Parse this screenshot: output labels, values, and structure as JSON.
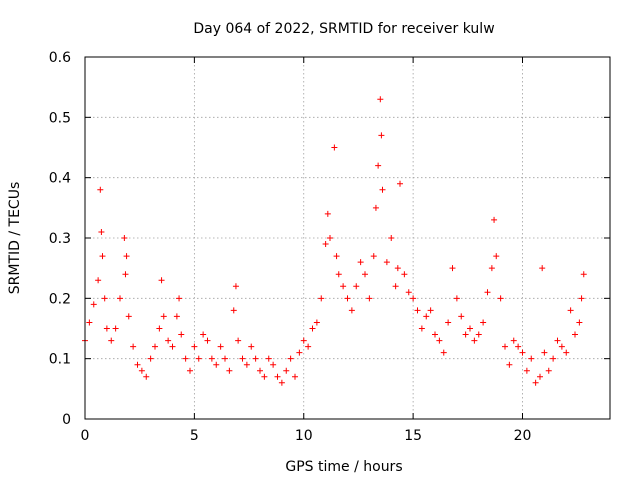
{
  "chart_data": {
    "type": "scatter",
    "title": "Day 064 of 2022, SRMTID for receiver kulw",
    "xlabel": "GPS time / hours",
    "ylabel": "SRMTID / TECUs",
    "xlim": [
      0,
      24
    ],
    "ylim": [
      0,
      0.6
    ],
    "xticks": [
      0,
      5,
      10,
      15,
      20
    ],
    "xtick_labels": [
      "0",
      "5",
      "10",
      "15",
      "20"
    ],
    "yticks": [
      0,
      0.1,
      0.2,
      0.3,
      0.4,
      0.5,
      0.6
    ],
    "ytick_labels": [
      "0",
      "0.1",
      "0.2",
      "0.3",
      "0.4",
      "0.5",
      "0.6"
    ],
    "grid": true,
    "marker": "+",
    "series_color": "#ff0000",
    "series": [
      {
        "name": "SRMTID",
        "x": [
          0.0,
          0.2,
          0.4,
          0.6,
          0.7,
          0.75,
          0.8,
          0.9,
          1.0,
          1.2,
          1.4,
          1.6,
          1.8,
          1.85,
          1.9,
          2.0,
          2.2,
          2.4,
          2.6,
          2.8,
          3.0,
          3.2,
          3.4,
          3.5,
          3.6,
          3.8,
          4.0,
          4.2,
          4.3,
          4.4,
          4.6,
          4.8,
          5.0,
          5.2,
          5.4,
          5.6,
          5.8,
          6.0,
          6.2,
          6.4,
          6.6,
          6.8,
          6.9,
          7.0,
          7.2,
          7.4,
          7.6,
          7.8,
          8.0,
          8.2,
          8.4,
          8.6,
          8.8,
          9.0,
          9.2,
          9.4,
          9.6,
          9.8,
          10.0,
          10.2,
          10.4,
          10.6,
          10.8,
          11.0,
          11.1,
          11.2,
          11.4,
          11.5,
          11.6,
          11.8,
          12.0,
          12.2,
          12.4,
          12.6,
          12.8,
          13.0,
          13.2,
          13.3,
          13.4,
          13.5,
          13.55,
          13.6,
          13.8,
          14.0,
          14.2,
          14.3,
          14.4,
          14.6,
          14.8,
          15.0,
          15.2,
          15.4,
          15.6,
          15.8,
          16.0,
          16.2,
          16.4,
          16.6,
          16.8,
          17.0,
          17.2,
          17.4,
          17.6,
          17.8,
          18.0,
          18.2,
          18.4,
          18.6,
          18.7,
          18.8,
          19.0,
          19.2,
          19.4,
          19.6,
          19.8,
          20.0,
          20.2,
          20.4,
          20.6,
          20.8,
          20.9,
          21.0,
          21.2,
          21.4,
          21.6,
          21.8,
          22.0,
          22.2,
          22.4,
          22.6,
          22.7,
          22.8
        ],
        "y": [
          0.13,
          0.16,
          0.19,
          0.23,
          0.38,
          0.31,
          0.27,
          0.2,
          0.15,
          0.13,
          0.15,
          0.2,
          0.3,
          0.24,
          0.27,
          0.17,
          0.12,
          0.09,
          0.08,
          0.07,
          0.1,
          0.12,
          0.15,
          0.23,
          0.17,
          0.13,
          0.12,
          0.17,
          0.2,
          0.14,
          0.1,
          0.08,
          0.12,
          0.1,
          0.14,
          0.13,
          0.1,
          0.09,
          0.12,
          0.1,
          0.08,
          0.18,
          0.22,
          0.13,
          0.1,
          0.09,
          0.12,
          0.1,
          0.08,
          0.07,
          0.1,
          0.09,
          0.07,
          0.06,
          0.08,
          0.1,
          0.07,
          0.11,
          0.13,
          0.12,
          0.15,
          0.16,
          0.2,
          0.29,
          0.34,
          0.3,
          0.45,
          0.27,
          0.24,
          0.22,
          0.2,
          0.18,
          0.22,
          0.26,
          0.24,
          0.2,
          0.27,
          0.35,
          0.42,
          0.53,
          0.47,
          0.38,
          0.26,
          0.3,
          0.22,
          0.25,
          0.39,
          0.24,
          0.21,
          0.2,
          0.18,
          0.15,
          0.17,
          0.18,
          0.14,
          0.13,
          0.11,
          0.16,
          0.25,
          0.2,
          0.17,
          0.14,
          0.15,
          0.13,
          0.14,
          0.16,
          0.21,
          0.25,
          0.33,
          0.27,
          0.2,
          0.12,
          0.09,
          0.13,
          0.12,
          0.11,
          0.08,
          0.1,
          0.06,
          0.07,
          0.25,
          0.11,
          0.08,
          0.1,
          0.13,
          0.12,
          0.11,
          0.18,
          0.14,
          0.16,
          0.2,
          0.24
        ]
      }
    ]
  }
}
